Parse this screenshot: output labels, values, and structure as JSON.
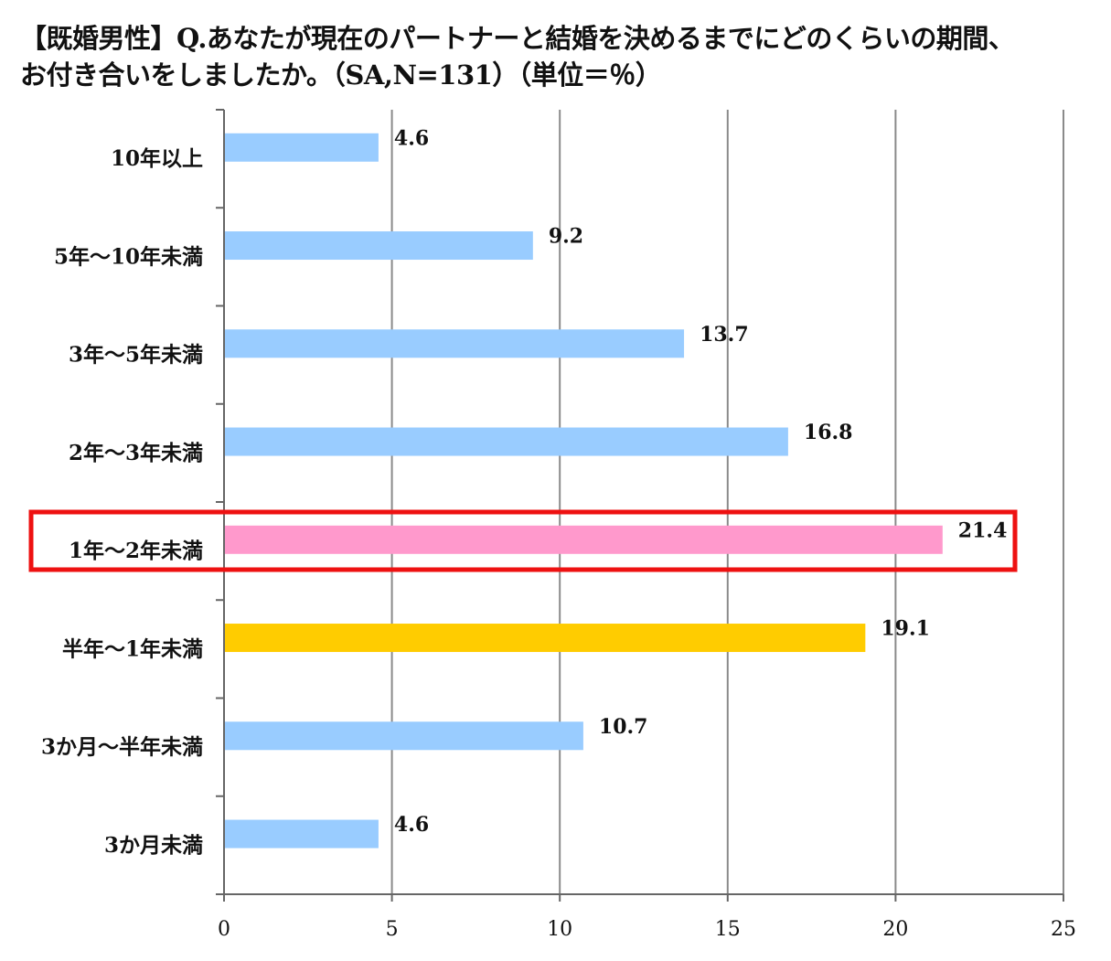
{
  "title_lines": [
    "【既婚男性】Q.あなたが現在のパートナーと結婚を決めるまでにどのくらいの期間、",
    "お付き合いをしましたか。（SA,N=131）（単位＝％）"
  ],
  "chart_data": {
    "type": "bar",
    "orientation": "horizontal",
    "categories": [
      "10年以上",
      "5年～10年未満",
      "3年～5年未満",
      "2年～3年未満",
      "1年～2年未満",
      "半年～1年未満",
      "3か月～半年未満",
      "3か月未満"
    ],
    "values": [
      4.6,
      9.2,
      13.7,
      16.8,
      21.4,
      19.1,
      10.7,
      4.6
    ],
    "value_labels": [
      "4.6",
      "9.2",
      "13.7",
      "16.8",
      "21.4",
      "19.1",
      "10.7",
      "4.6"
    ],
    "bar_colors": [
      "#99ccff",
      "#99ccff",
      "#99ccff",
      "#99ccff",
      "#ff99cc",
      "#ffcc00",
      "#99ccff",
      "#99ccff"
    ],
    "xlim": [
      0,
      25
    ],
    "xticks": [
      0,
      5,
      10,
      15,
      20,
      25
    ],
    "xtick_labels": [
      "0",
      "5",
      "10",
      "15",
      "20",
      "25"
    ],
    "grid": "vertical",
    "highlight_category": "1年～2年未満",
    "highlight_color": "#ee1111"
  }
}
